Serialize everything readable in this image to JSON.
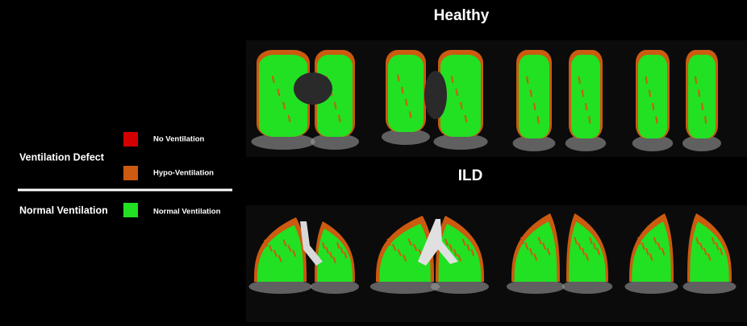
{
  "panels": [
    {
      "title": "Healthy"
    },
    {
      "title": "ILD"
    }
  ],
  "legend": {
    "groups": [
      {
        "label": "Ventilation Defect",
        "items": [
          {
            "label": "No Ventilation",
            "color": "#d40000"
          },
          {
            "label": "Hypo-Ventilation",
            "color": "#cc5a10"
          }
        ]
      },
      {
        "label": "Normal Ventilation",
        "items": [
          {
            "label": "Normal Ventilation",
            "color": "#22e022"
          }
        ]
      }
    ]
  }
}
